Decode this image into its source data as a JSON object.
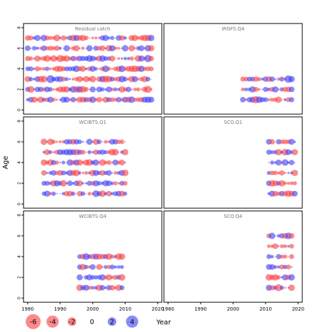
{
  "chart_data": {
    "type": "scatter",
    "ylabel": "Age",
    "xlabel": "Year",
    "xlim": [
      1980,
      2020
    ],
    "ylim": [
      0,
      8
    ],
    "x_ticks": [
      1980,
      1990,
      2000,
      2010,
      2020
    ],
    "y_ticks": [
      0,
      2,
      4,
      6,
      8
    ],
    "grid": false,
    "colors": {
      "negative": "#ff3a3a",
      "positive": "#3a3aff"
    },
    "size_legend": {
      "placement": "bottom-left",
      "items": [
        {
          "label": "-6",
          "value": -6
        },
        {
          "label": "-4",
          "value": -4
        },
        {
          "label": "-2",
          "value": -2
        },
        {
          "label": "0",
          "value": 0
        },
        {
          "label": "2",
          "value": 2
        },
        {
          "label": "4",
          "value": 4
        }
      ]
    },
    "panels": [
      {
        "title": "Residual catch",
        "years": [
          1980,
          2018
        ],
        "ages": [
          1,
          2,
          3,
          4,
          5,
          6,
          7
        ]
      },
      {
        "title": "IRGFS.Q4",
        "years": [
          2003,
          2018
        ],
        "ages": [
          1,
          2,
          3
        ]
      },
      {
        "title": "WCIBTS.Q1",
        "years": [
          1985,
          2010
        ],
        "ages": [
          1,
          2,
          3,
          4,
          5,
          6
        ]
      },
      {
        "title": "SCO.Q1",
        "years": [
          2011,
          2019
        ],
        "ages": [
          1,
          2,
          3,
          4,
          5,
          6
        ]
      },
      {
        "title": "WCIBTS.Q4",
        "years": [
          1996,
          2009
        ],
        "ages": [
          1,
          2,
          3,
          4
        ]
      },
      {
        "title": "SCO.Q4",
        "years": [
          2011,
          2018
        ],
        "ages": [
          1,
          2,
          3,
          4,
          5,
          6
        ]
      }
    ]
  }
}
